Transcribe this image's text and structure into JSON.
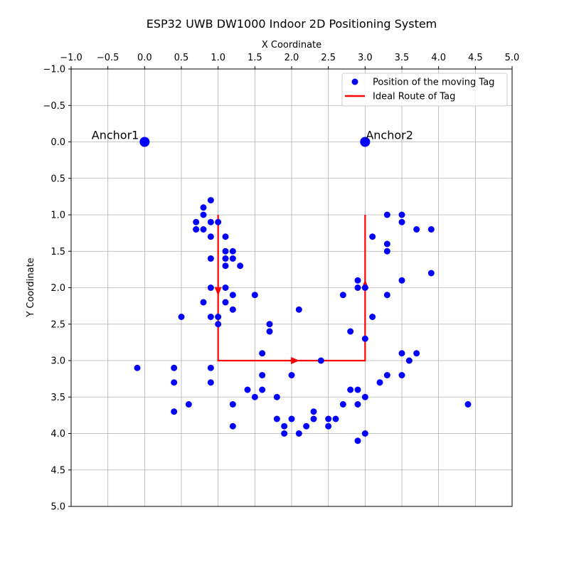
{
  "chart_data": {
    "type": "scatter",
    "title": "ESP32 UWB DW1000 Indoor 2D Positioning System",
    "xlabel": "X Coordinate",
    "ylabel": "Y Coordinate",
    "xlim": [
      -1.0,
      5.0
    ],
    "ylim": [
      -1.0,
      5.0
    ],
    "x_axis_position": "top",
    "y_axis_inverted": true,
    "grid": true,
    "legend_position": "top-right",
    "x_ticks": [
      "−1.0",
      "−0.5",
      "0.0",
      "0.5",
      "1.0",
      "1.5",
      "2.0",
      "2.5",
      "3.0",
      "3.5",
      "4.0",
      "4.5",
      "5.0"
    ],
    "y_ticks": [
      "−1.0",
      "−0.5",
      "0.0",
      "0.5",
      "1.0",
      "1.5",
      "2.0",
      "2.5",
      "3.0",
      "3.5",
      "4.0",
      "4.5",
      "5.0"
    ],
    "series": [
      {
        "name": "Position of the moving Tag",
        "type": "scatter",
        "color": "#0000ff",
        "x": [
          0.9,
          0.8,
          0.8,
          0.7,
          0.9,
          1.0,
          0.7,
          0.8,
          0.7,
          1.1,
          0.9,
          1.1,
          1.2,
          1.1,
          1.2,
          0.9,
          1.1,
          1.3,
          0.9,
          1.1,
          1.2,
          0.8,
          1.1,
          1.2,
          0.5,
          0.9,
          1.0,
          1.0,
          1.5,
          1.7,
          1.7,
          1.6,
          2.1,
          -0.1,
          0.4,
          0.9,
          0.4,
          0.9,
          1.6,
          1.4,
          1.6,
          1.5,
          1.8,
          0.6,
          1.2,
          0.4,
          1.8,
          1.9,
          1.9,
          1.2,
          2.0,
          2.0,
          2.1,
          2.2,
          2.3,
          2.3,
          2.4,
          2.5,
          2.5,
          2.6,
          2.7,
          2.8,
          2.8,
          2.9,
          2.9,
          2.9,
          3.0,
          3.0,
          3.3,
          3.5,
          3.1,
          3.3,
          3.3,
          2.9,
          2.9,
          3.0,
          3.3,
          2.7,
          3.1,
          3.0,
          3.5,
          3.5,
          3.7,
          3.9,
          3.9,
          3.5,
          3.6,
          3.7,
          3.3,
          3.5,
          3.2,
          4.4
        ],
        "y": [
          0.8,
          0.9,
          1.0,
          1.1,
          1.1,
          1.1,
          1.2,
          1.2,
          1.2,
          1.3,
          1.3,
          1.5,
          1.5,
          1.6,
          1.6,
          1.6,
          1.7,
          1.7,
          2.0,
          2.0,
          2.1,
          2.2,
          2.2,
          2.3,
          2.4,
          2.4,
          2.4,
          2.5,
          2.1,
          2.5,
          2.6,
          2.9,
          2.3,
          3.1,
          3.1,
          3.1,
          3.3,
          3.3,
          3.2,
          3.4,
          3.4,
          3.5,
          3.5,
          3.6,
          3.6,
          3.7,
          3.8,
          3.9,
          4.0,
          3.9,
          3.8,
          3.2,
          4.0,
          3.9,
          3.8,
          3.7,
          3.0,
          3.8,
          3.9,
          3.8,
          3.6,
          3.4,
          2.6,
          3.4,
          3.6,
          4.1,
          3.5,
          4.0,
          3.2,
          3.2,
          2.4,
          2.1,
          1.4,
          1.9,
          2.0,
          2.0,
          1.5,
          2.1,
          1.3,
          2.7,
          1.1,
          1.0,
          1.2,
          1.2,
          1.8,
          1.9,
          3.0,
          2.9,
          1.0,
          2.9,
          3.3,
          3.6
        ]
      },
      {
        "name": "Ideal Route of Tag",
        "type": "line",
        "color": "#ff0000",
        "x": [
          1.0,
          1.0,
          3.0,
          3.0
        ],
        "y": [
          1.0,
          3.0,
          3.0,
          1.0
        ],
        "arrows": [
          {
            "x": 1.0,
            "y": 2.05,
            "direction": "down"
          },
          {
            "x": 2.05,
            "y": 3.0,
            "direction": "right"
          },
          {
            "x": 3.0,
            "y": 1.95,
            "direction": "up"
          }
        ]
      }
    ],
    "anchors": [
      {
        "label": "Anchor1",
        "x": 0.0,
        "y": 0.0,
        "color": "#0000ff"
      },
      {
        "label": "Anchor2",
        "x": 3.0,
        "y": 0.0,
        "color": "#0000ff"
      }
    ]
  }
}
